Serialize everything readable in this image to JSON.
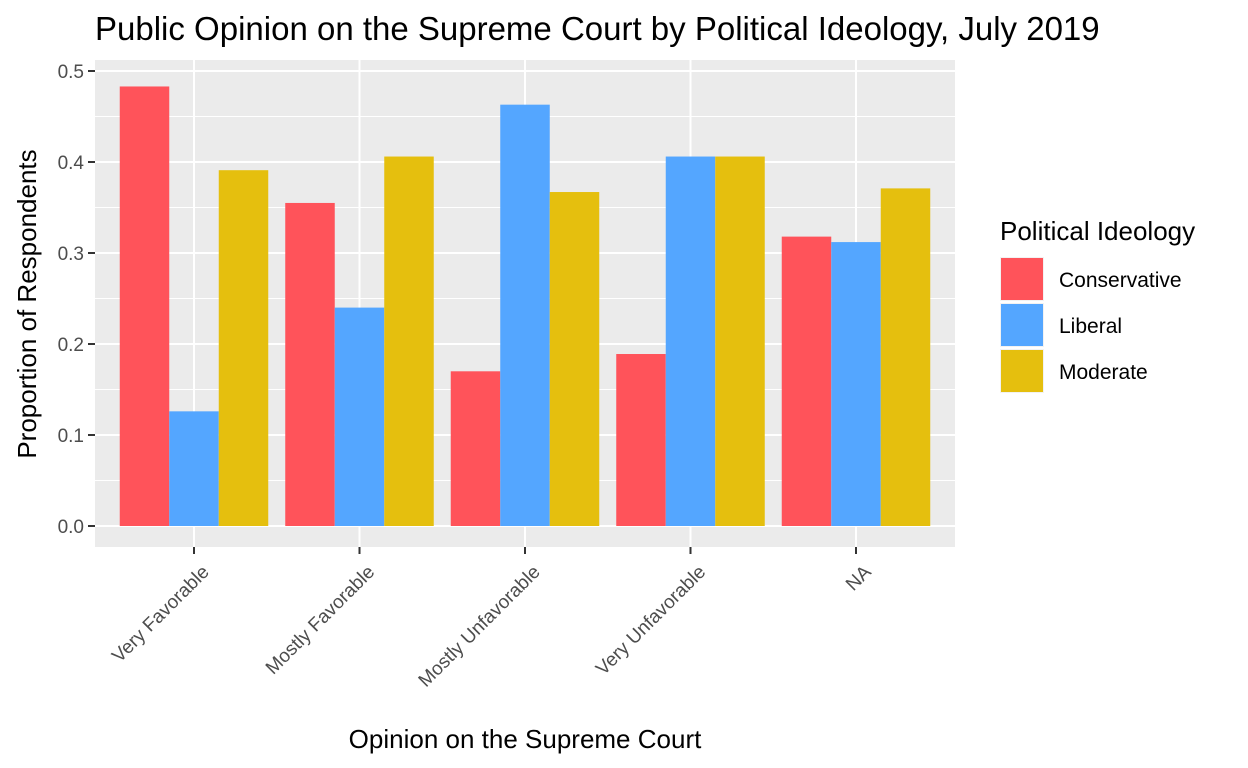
{
  "chart_data": {
    "type": "bar",
    "title": "Public Opinion on the Supreme Court by Political Ideology, July 2019",
    "xlabel": "Opinion on the Supreme Court",
    "ylabel": "Proportion of Respondents",
    "categories": [
      "Very Favorable",
      "Mostly Favorable",
      "Mostly Unfavorable",
      "Very Unfavorable",
      "NA"
    ],
    "series": [
      {
        "name": "Conservative",
        "color": "#FF535A",
        "values": [
          0.483,
          0.355,
          0.17,
          0.189,
          0.318
        ]
      },
      {
        "name": "Liberal",
        "color": "#54A6FF",
        "values": [
          0.126,
          0.24,
          0.463,
          0.406,
          0.312
        ]
      },
      {
        "name": "Moderate",
        "color": "#E5BF0E",
        "values": [
          0.391,
          0.406,
          0.367,
          0.406,
          0.371
        ]
      }
    ],
    "ylim": [
      0,
      0.5
    ],
    "yticks": [
      "0.0",
      "0.1",
      "0.2",
      "0.3",
      "0.4",
      "0.5"
    ],
    "legend": {
      "title": "Political Ideology",
      "position": "right"
    },
    "grid": true,
    "panel_background": "#EBEBEB"
  }
}
